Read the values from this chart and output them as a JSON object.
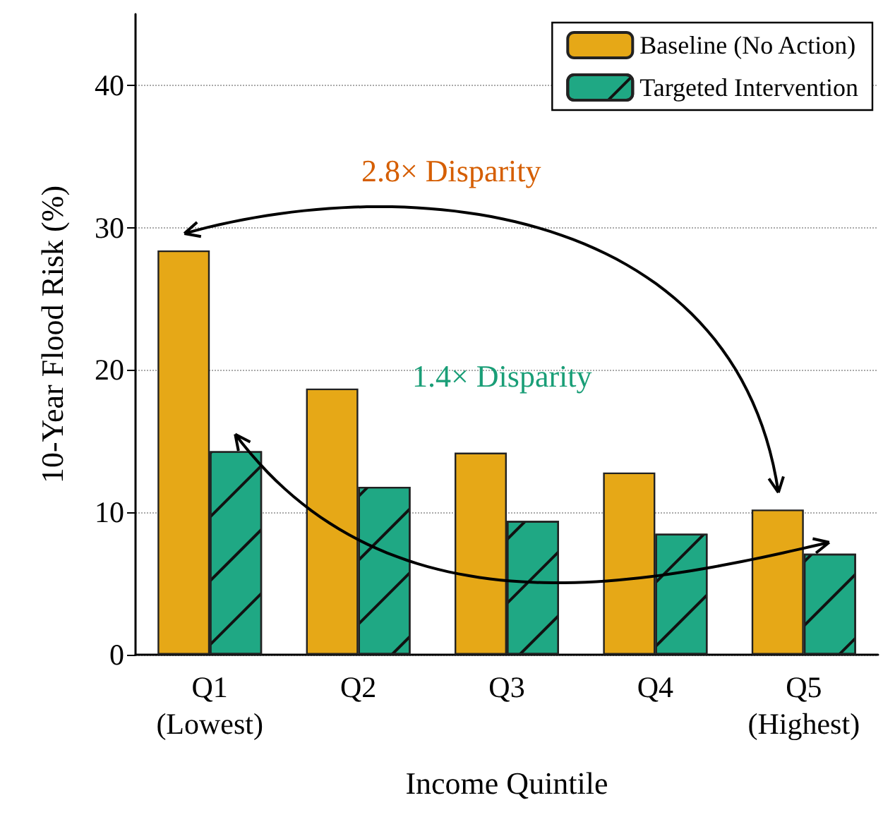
{
  "chart_data": {
    "type": "bar",
    "xlabel": "Income Quintile",
    "ylabel": "10-Year Flood Risk (%)",
    "categories": [
      "Q1\n(Lowest)",
      "Q2",
      "Q3",
      "Q4",
      "Q5\n(Highest)"
    ],
    "series": [
      {
        "name": "Baseline (No Action)",
        "color": "#e6a817",
        "values": [
          28.4,
          18.7,
          14.2,
          12.8,
          10.2
        ]
      },
      {
        "name": "Targeted Intervention",
        "color": "#1fa884",
        "values": [
          14.3,
          11.8,
          9.4,
          8.5,
          7.1
        ]
      }
    ],
    "ylim": [
      0,
      45
    ],
    "yticks": [
      0,
      10,
      20,
      30,
      40
    ],
    "grid": "y",
    "legend": "top right",
    "annotations": [
      "2.8× Disparity",
      "1.4× Disparity"
    ]
  }
}
